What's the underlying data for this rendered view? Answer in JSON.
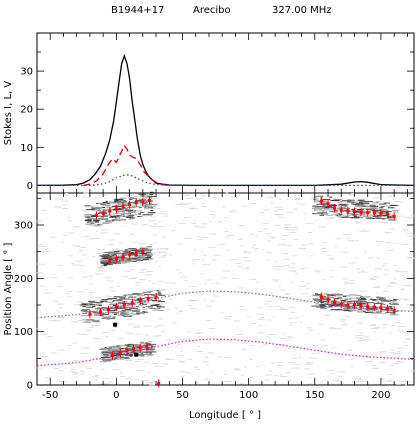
{
  "header": {
    "source": "B1944+17",
    "telescope": "Arecibo",
    "frequency": "327.00 MHz"
  },
  "chart_data": [
    {
      "type": "line",
      "panel": "profile",
      "ylabel": "Stokes I, L, V",
      "xlim": [
        -60,
        225
      ],
      "ylim": [
        -2,
        40
      ],
      "yticks": [
        0,
        10,
        20,
        30
      ],
      "series": [
        {
          "key": "I",
          "color": "#000000",
          "style": "solid",
          "x": [
            -60,
            -40,
            -30,
            -25,
            -20,
            -16,
            -12,
            -8,
            -5,
            -2,
            0,
            2,
            4,
            6,
            8,
            10,
            12,
            14,
            16,
            18,
            20,
            22,
            24,
            26,
            28,
            30,
            35,
            40,
            60,
            100,
            150,
            170,
            180,
            185,
            190,
            200,
            225
          ],
          "values": [
            0,
            0.05,
            0.2,
            0.6,
            1.5,
            3,
            5,
            8.5,
            12,
            17,
            22,
            27,
            32,
            34,
            32,
            28,
            22,
            17,
            12,
            8,
            5.5,
            3.8,
            2.6,
            1.8,
            1.2,
            0.6,
            0.3,
            0.1,
            0,
            0,
            0,
            0.3,
            0.9,
            1.0,
            0.8,
            0.2,
            0
          ]
        },
        {
          "key": "L",
          "color": "#e00000",
          "style": "dashed",
          "x": [
            -25,
            -20,
            -15,
            -10,
            -6,
            -3,
            0,
            2,
            4,
            6,
            8,
            10,
            12,
            15,
            18,
            21,
            24,
            27,
            30,
            35,
            40
          ],
          "values": [
            0,
            0.3,
            1.2,
            3,
            5.5,
            7,
            6,
            7.5,
            9,
            10.5,
            9.5,
            8,
            7.5,
            7,
            5.5,
            3.5,
            2.5,
            1.5,
            0.8,
            0.2,
            0
          ]
        },
        {
          "key": "V",
          "color": "#2a3fd6",
          "style": "dotted",
          "x": [
            -60,
            -20,
            -10,
            -5,
            0,
            5,
            8,
            12,
            16,
            22,
            30,
            40,
            225
          ],
          "values": [
            0,
            0,
            0.4,
            1,
            2,
            2.6,
            2.8,
            2.5,
            1.8,
            0.8,
            0.2,
            0,
            0
          ]
        }
      ]
    },
    {
      "type": "scatter",
      "panel": "position-angle",
      "xlabel": "Longitude [ ° ]",
      "ylabel": "Position Angle [ ° ]",
      "xlim": [
        -60,
        225
      ],
      "ylim": [
        0,
        360
      ],
      "xticks": [
        -50,
        0,
        50,
        100,
        150,
        200
      ],
      "yticks": [
        0,
        100,
        200,
        300
      ],
      "rvm_curves": [
        {
          "key": "rvm-upper",
          "color": "#a050d0",
          "x": [
            -60,
            -30,
            0,
            30,
            50,
            70,
            90,
            110,
            130,
            150,
            170,
            190,
            210,
            225
          ],
          "values": [
            126,
            132,
            145,
            162,
            172,
            176,
            175,
            170,
            163,
            155,
            148,
            143,
            140,
            138
          ]
        },
        {
          "key": "rvm-lower",
          "color": "#d020d0",
          "x": [
            -60,
            -30,
            0,
            30,
            50,
            70,
            90,
            110,
            130,
            150,
            170,
            190,
            210,
            225
          ],
          "values": [
            36,
            42,
            55,
            72,
            82,
            86,
            85,
            80,
            73,
            65,
            58,
            53,
            50,
            48
          ]
        }
      ],
      "pa_points": [
        {
          "x": -15,
          "y": 318
        },
        {
          "x": -10,
          "y": 322
        },
        {
          "x": -5,
          "y": 326
        },
        {
          "x": 0,
          "y": 330
        },
        {
          "x": 5,
          "y": 335
        },
        {
          "x": 10,
          "y": 338
        },
        {
          "x": 15,
          "y": 342
        },
        {
          "x": 20,
          "y": 343
        },
        {
          "x": 25,
          "y": 346
        },
        {
          "x": -5,
          "y": 232
        },
        {
          "x": 0,
          "y": 236
        },
        {
          "x": 5,
          "y": 240
        },
        {
          "x": 10,
          "y": 244
        },
        {
          "x": 15,
          "y": 248
        },
        {
          "x": 20,
          "y": 250
        },
        {
          "x": -20,
          "y": 133
        },
        {
          "x": -12,
          "y": 137
        },
        {
          "x": -6,
          "y": 141
        },
        {
          "x": 0,
          "y": 146
        },
        {
          "x": 6,
          "y": 150
        },
        {
          "x": 12,
          "y": 154
        },
        {
          "x": 18,
          "y": 158
        },
        {
          "x": 24,
          "y": 162
        },
        {
          "x": 30,
          "y": 165
        },
        {
          "x": -3,
          "y": 55
        },
        {
          "x": 3,
          "y": 60
        },
        {
          "x": 8,
          "y": 64
        },
        {
          "x": 13,
          "y": 68
        },
        {
          "x": 18,
          "y": 70
        },
        {
          "x": 23,
          "y": 72
        },
        {
          "x": 32,
          "y": 3
        },
        {
          "x": 155,
          "y": 345
        },
        {
          "x": 160,
          "y": 340
        },
        {
          "x": 165,
          "y": 332
        },
        {
          "x": 170,
          "y": 328
        },
        {
          "x": 175,
          "y": 326
        },
        {
          "x": 180,
          "y": 325
        },
        {
          "x": 185,
          "y": 324
        },
        {
          "x": 190,
          "y": 323
        },
        {
          "x": 195,
          "y": 323
        },
        {
          "x": 200,
          "y": 322
        },
        {
          "x": 205,
          "y": 320
        },
        {
          "x": 210,
          "y": 316
        },
        {
          "x": 155,
          "y": 165
        },
        {
          "x": 160,
          "y": 160
        },
        {
          "x": 165,
          "y": 155
        },
        {
          "x": 170,
          "y": 152
        },
        {
          "x": 175,
          "y": 150
        },
        {
          "x": 180,
          "y": 150
        },
        {
          "x": 185,
          "y": 148
        },
        {
          "x": 190,
          "y": 147
        },
        {
          "x": 195,
          "y": 146
        },
        {
          "x": 200,
          "y": 145
        },
        {
          "x": 205,
          "y": 143
        },
        {
          "x": 210,
          "y": 140
        }
      ],
      "black_markers": [
        {
          "x": -1,
          "y": 113
        },
        {
          "x": 15,
          "y": 57
        }
      ],
      "grey_clusters": [
        {
          "x0": -22,
          "x1": 28,
          "y0": 305,
          "y1": 352,
          "slope": 0.55
        },
        {
          "x0": -10,
          "x1": 25,
          "y0": 228,
          "y1": 256,
          "slope": 0.45
        },
        {
          "x0": -25,
          "x1": 35,
          "y0": 125,
          "y1": 170,
          "slope": 0.55
        },
        {
          "x0": -10,
          "x1": 28,
          "y0": 48,
          "y1": 78,
          "slope": 0.45
        },
        {
          "x0": 150,
          "x1": 212,
          "y0": 310,
          "y1": 350,
          "slope": -0.35
        },
        {
          "x0": 150,
          "x1": 212,
          "y0": 135,
          "y1": 170,
          "slope": -0.35
        }
      ]
    }
  ]
}
